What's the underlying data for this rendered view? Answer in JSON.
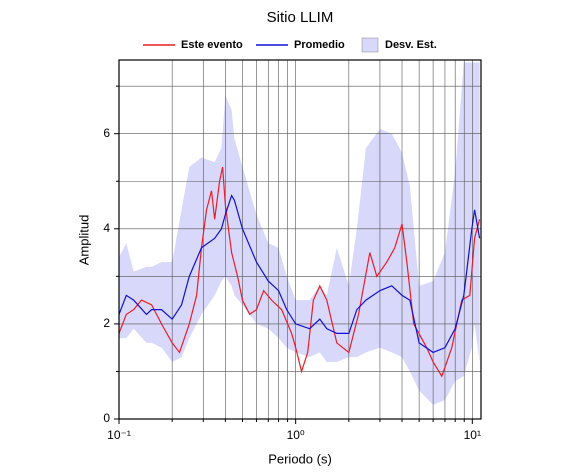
{
  "chart_data": {
    "type": "line",
    "title": "Sitio LLIM",
    "x_label": "Periodo (s)",
    "y_label": "Amplitud",
    "xlog": true,
    "xlim": [
      0.1,
      11.2
    ],
    "ylim": [
      0,
      7.55
    ],
    "xticks": [
      {
        "value": 0.1,
        "label": "10⁻¹"
      },
      {
        "value": 1,
        "label": "10⁰"
      },
      {
        "value": 10,
        "label": "10¹"
      }
    ],
    "xminor": [
      0.2,
      0.3,
      0.4,
      0.5,
      0.6,
      0.7,
      0.8,
      0.9,
      2,
      3,
      4,
      5,
      6,
      7,
      8,
      9
    ],
    "yticks": [
      0,
      2,
      4,
      6
    ],
    "yminor": [
      1,
      3,
      5,
      7
    ],
    "grid": true,
    "series": [
      {
        "name": "Este evento",
        "color": "#ee1c25",
        "x": [
          0.1,
          0.11,
          0.121,
          0.134,
          0.153,
          0.174,
          0.2,
          0.22,
          0.25,
          0.275,
          0.293,
          0.313,
          0.334,
          0.348,
          0.371,
          0.386,
          0.4,
          0.434,
          0.469,
          0.5,
          0.549,
          0.6,
          0.659,
          0.731,
          0.833,
          0.949,
          1,
          1.08,
          1.17,
          1.26,
          1.37,
          1.5,
          1.71,
          2,
          2.27,
          2.63,
          2.88,
          3.28,
          3.64,
          4,
          4.26,
          4.66,
          5.52,
          6,
          6.72,
          7.65,
          8.72,
          9.68,
          10.3,
          11
        ],
        "values": [
          1.8,
          2.2,
          2.3,
          2.5,
          2.4,
          2.0,
          1.6,
          1.4,
          2.0,
          2.6,
          3.6,
          4.4,
          4.8,
          4.2,
          5.0,
          5.3,
          4.5,
          3.5,
          3.0,
          2.5,
          2.2,
          2.3,
          2.7,
          2.5,
          2.3,
          1.8,
          1.5,
          1.0,
          1.4,
          2.5,
          2.8,
          2.5,
          1.6,
          1.4,
          2.2,
          3.5,
          3.0,
          3.3,
          3.6,
          4.1,
          3.3,
          2.0,
          1.5,
          1.2,
          0.9,
          1.5,
          2.5,
          2.6,
          3.8,
          4.2
        ]
      },
      {
        "name": "Promedio",
        "color": "#1010d8",
        "x": [
          0.1,
          0.11,
          0.121,
          0.143,
          0.153,
          0.174,
          0.2,
          0.226,
          0.25,
          0.293,
          0.348,
          0.38,
          0.4,
          0.434,
          0.45,
          0.5,
          0.6,
          0.7,
          0.8,
          0.89,
          1,
          1.2,
          1.37,
          1.5,
          1.71,
          2,
          2.22,
          2.5,
          3,
          3.5,
          4,
          4.43,
          5,
          6,
          7,
          8,
          8.95,
          9.94,
          10.3,
          11
        ],
        "values": [
          2.2,
          2.6,
          2.5,
          2.2,
          2.3,
          2.3,
          2.1,
          2.4,
          3.0,
          3.6,
          3.8,
          4.0,
          4.3,
          4.7,
          4.6,
          4.0,
          3.3,
          2.9,
          2.7,
          2.3,
          2.0,
          1.9,
          2.1,
          1.9,
          1.8,
          1.8,
          2.3,
          2.5,
          2.7,
          2.8,
          2.6,
          2.5,
          1.6,
          1.4,
          1.5,
          1.9,
          2.6,
          4.0,
          4.4,
          3.8
        ]
      }
    ],
    "band": {
      "name": "Desv. Est.",
      "color": "#d8d8fa",
      "x": [
        0.1,
        0.11,
        0.121,
        0.143,
        0.153,
        0.174,
        0.2,
        0.226,
        0.25,
        0.293,
        0.348,
        0.38,
        0.4,
        0.434,
        0.45,
        0.5,
        0.6,
        0.7,
        0.8,
        0.89,
        1,
        1.2,
        1.37,
        1.5,
        1.71,
        2,
        2.22,
        2.5,
        3,
        3.5,
        4,
        4.43,
        5,
        6,
        7,
        8,
        8.95,
        9.94,
        10.3,
        11
      ],
      "upper": [
        3.4,
        3.7,
        3.1,
        3.2,
        3.2,
        3.3,
        3.3,
        4.4,
        5.3,
        5.5,
        5.4,
        5.7,
        6.8,
        6.5,
        5.9,
        5.3,
        4.3,
        3.7,
        3.6,
        3.0,
        2.5,
        2.5,
        2.8,
        2.6,
        3.6,
        2.8,
        4.0,
        5.7,
        6.1,
        6.0,
        5.6,
        4.9,
        2.8,
        2.9,
        3.5,
        5.2,
        7.5,
        7.5,
        7.5,
        7.5
      ],
      "lower": [
        1.7,
        1.7,
        1.9,
        1.6,
        1.6,
        1.5,
        1.2,
        1.3,
        1.7,
        2.2,
        2.6,
        2.9,
        3.0,
        2.8,
        2.6,
        2.4,
        2.0,
        1.9,
        1.7,
        1.5,
        1.4,
        1.3,
        1.4,
        1.2,
        1.2,
        1.3,
        1.3,
        1.4,
        1.5,
        1.4,
        1.3,
        1.0,
        0.6,
        0.3,
        0.4,
        0.8,
        0.9,
        1.5,
        2.0,
        1.2
      ]
    }
  }
}
